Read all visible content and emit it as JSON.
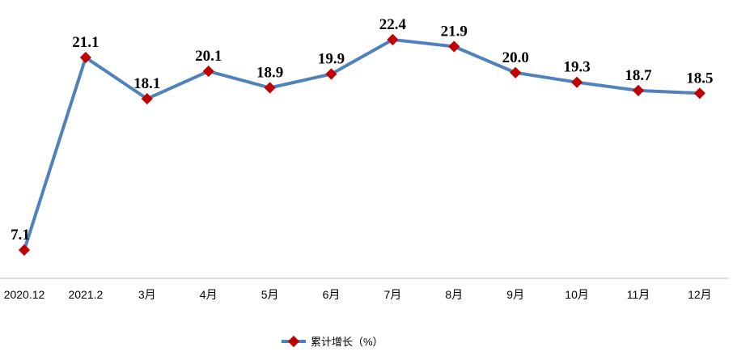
{
  "chart_data": {
    "type": "line",
    "categories": [
      "2020.12",
      "2021.2",
      "3月",
      "4月",
      "5月",
      "6月",
      "7月",
      "8月",
      "9月",
      "10月",
      "11月",
      "12月"
    ],
    "series": [
      {
        "name": "累计增长（%）",
        "values": [
          7.1,
          21.1,
          18.1,
          20.1,
          18.9,
          19.9,
          22.4,
          21.9,
          20.0,
          19.3,
          18.7,
          18.5
        ],
        "labels": [
          "7.1",
          "21.1",
          "18.1",
          "20.1",
          "18.9",
          "19.9",
          "22.4",
          "21.9",
          "20.0",
          "19.3",
          "18.7",
          "18.5"
        ],
        "line_color": "#4f81bd",
        "marker_color": "#c00000",
        "marker": "diamond"
      }
    ],
    "legend_position": "bottom-center",
    "grid": false
  }
}
